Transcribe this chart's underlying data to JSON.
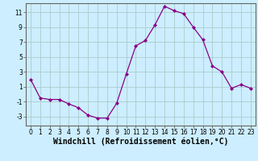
{
  "x": [
    0,
    1,
    2,
    3,
    4,
    5,
    6,
    7,
    8,
    9,
    10,
    11,
    12,
    13,
    14,
    15,
    16,
    17,
    18,
    19,
    20,
    21,
    22,
    23
  ],
  "y": [
    2.0,
    -0.5,
    -0.7,
    -0.7,
    -1.3,
    -1.8,
    -2.8,
    -3.2,
    -3.2,
    -1.2,
    2.7,
    6.5,
    7.2,
    9.3,
    11.8,
    11.2,
    10.8,
    9.0,
    7.3,
    3.8,
    3.0,
    0.8,
    1.3,
    0.8
  ],
  "line_color": "#880088",
  "marker_color": "#880088",
  "bg_color": "#cceeff",
  "grid_color": "#aacccc",
  "xlabel": "Windchill (Refroidissement éolien,°C)",
  "ylim": [
    -4.2,
    12.2
  ],
  "xlim": [
    -0.5,
    23.5
  ],
  "yticks": [
    -3,
    -1,
    1,
    3,
    5,
    7,
    9,
    11
  ],
  "xticks": [
    0,
    1,
    2,
    3,
    4,
    5,
    6,
    7,
    8,
    9,
    10,
    11,
    12,
    13,
    14,
    15,
    16,
    17,
    18,
    19,
    20,
    21,
    22,
    23
  ],
  "tick_fontsize": 5.5,
  "xlabel_fontsize": 7.0
}
